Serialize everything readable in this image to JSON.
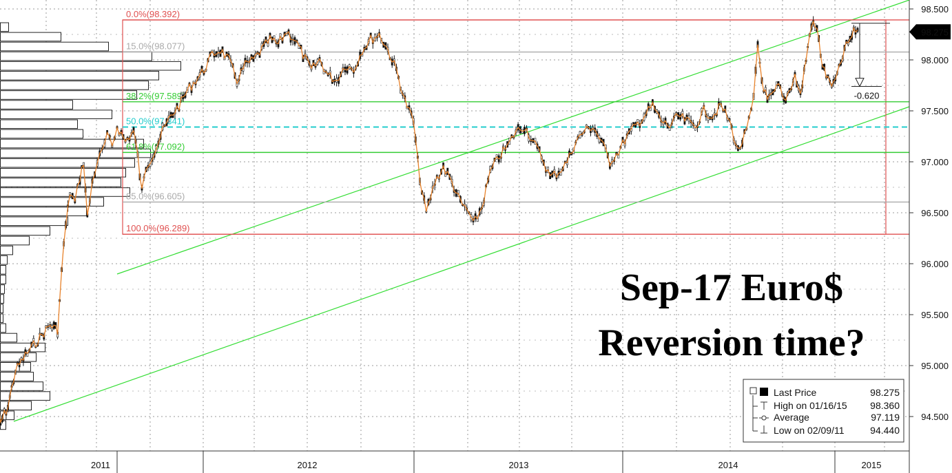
{
  "chart_data": {
    "type": "candlestick",
    "title": "Sep-17 Euro$",
    "subtitle": "Reversion time?",
    "y_axis": {
      "min": 94.3,
      "max": 98.55,
      "ticks": [
        "98.500",
        "98.000",
        "97.500",
        "97.000",
        "96.500",
        "96.000",
        "95.500",
        "95.000",
        "94.500"
      ],
      "position": "right"
    },
    "x_axis": {
      "labels": [
        "2011",
        "2012",
        "2013",
        "2014",
        "2015"
      ]
    },
    "last_price_label": "98.275",
    "fib_levels": [
      {
        "label": "0.0%(98.392)",
        "value": 98.392,
        "color": "#e05050"
      },
      {
        "label": "15.0%(98.077)",
        "value": 98.077,
        "color": "#aaaaaa"
      },
      {
        "label": "38.2%(97.589)",
        "value": 97.589,
        "color": "#33cc33"
      },
      {
        "label": "50.0%(97.341)",
        "value": 97.341,
        "color": "#22cccc"
      },
      {
        "label": "61.8%(97.092)",
        "value": 97.092,
        "color": "#33cc33"
      },
      {
        "label": "85.0%(96.605)",
        "value": 96.605,
        "color": "#aaaaaa"
      },
      {
        "label": "100.0%(96.289)",
        "value": 96.289,
        "color": "#e05050"
      }
    ],
    "annotation": "-0.620",
    "price_path": [
      [
        0.0,
        95.0
      ],
      [
        0.06,
        94.44
      ],
      [
        0.12,
        94.6
      ],
      [
        0.18,
        94.95
      ],
      [
        0.26,
        95.1
      ],
      [
        0.36,
        95.25
      ],
      [
        0.46,
        95.4
      ],
      [
        0.52,
        95.35
      ],
      [
        0.57,
        96.2
      ],
      [
        0.62,
        96.7
      ],
      [
        0.66,
        96.6
      ],
      [
        0.7,
        96.85
      ],
      [
        0.73,
        97.0
      ],
      [
        0.76,
        96.45
      ],
      [
        0.8,
        96.8
      ],
      [
        0.84,
        97.0
      ],
      [
        0.88,
        97.1
      ],
      [
        0.92,
        97.25
      ],
      [
        0.96,
        97.15
      ],
      [
        1.0,
        97.35
      ],
      [
        1.04,
        97.2
      ],
      [
        1.08,
        97.3
      ],
      [
        1.1,
        97.05
      ],
      [
        1.12,
        96.7
      ],
      [
        1.14,
        96.95
      ],
      [
        1.18,
        97.1
      ],
      [
        1.22,
        97.3
      ],
      [
        1.26,
        97.45
      ],
      [
        1.3,
        97.55
      ],
      [
        1.34,
        97.7
      ],
      [
        1.38,
        97.8
      ],
      [
        1.42,
        97.9
      ],
      [
        1.46,
        98.05
      ],
      [
        1.5,
        98.1
      ],
      [
        1.54,
        98.0
      ],
      [
        1.58,
        97.8
      ],
      [
        1.62,
        97.95
      ],
      [
        1.66,
        98.0
      ],
      [
        1.7,
        98.1
      ],
      [
        1.74,
        98.2
      ],
      [
        1.78,
        98.15
      ],
      [
        1.82,
        98.28
      ],
      [
        1.86,
        98.2
      ],
      [
        1.9,
        98.05
      ],
      [
        1.94,
        97.9
      ],
      [
        1.98,
        98.0
      ],
      [
        2.02,
        97.85
      ],
      [
        2.06,
        97.8
      ],
      [
        2.1,
        97.95
      ],
      [
        2.14,
        97.9
      ],
      [
        2.18,
        98.1
      ],
      [
        2.22,
        98.2
      ],
      [
        2.26,
        98.25
      ],
      [
        2.3,
        98.1
      ],
      [
        2.34,
        97.9
      ],
      [
        2.38,
        97.6
      ],
      [
        2.42,
        97.4
      ],
      [
        2.44,
        97.0
      ],
      [
        2.46,
        96.7
      ],
      [
        2.48,
        96.5
      ],
      [
        2.52,
        96.8
      ],
      [
        2.56,
        96.95
      ],
      [
        2.6,
        96.8
      ],
      [
        2.64,
        96.6
      ],
      [
        2.68,
        96.5
      ],
      [
        2.7,
        96.38
      ],
      [
        2.74,
        96.55
      ],
      [
        2.78,
        96.9
      ],
      [
        2.82,
        97.05
      ],
      [
        2.86,
        97.15
      ],
      [
        2.9,
        97.3
      ],
      [
        2.94,
        97.35
      ],
      [
        2.98,
        97.2
      ],
      [
        3.02,
        97.05
      ],
      [
        3.06,
        96.85
      ],
      [
        3.1,
        96.9
      ],
      [
        3.14,
        97.0
      ],
      [
        3.18,
        97.2
      ],
      [
        3.22,
        97.3
      ],
      [
        3.26,
        97.35
      ],
      [
        3.3,
        97.2
      ],
      [
        3.34,
        97.0
      ],
      [
        3.38,
        97.1
      ],
      [
        3.42,
        97.25
      ],
      [
        3.46,
        97.35
      ],
      [
        3.5,
        97.45
      ],
      [
        3.54,
        97.55
      ],
      [
        3.58,
        97.4
      ],
      [
        3.62,
        97.35
      ],
      [
        3.66,
        97.45
      ],
      [
        3.7,
        97.4
      ],
      [
        3.74,
        97.35
      ],
      [
        3.78,
        97.5
      ],
      [
        3.82,
        97.45
      ],
      [
        3.86,
        97.55
      ],
      [
        3.9,
        97.4
      ],
      [
        3.94,
        97.1
      ],
      [
        3.98,
        97.3
      ],
      [
        4.02,
        97.6
      ],
      [
        4.05,
        98.15
      ],
      [
        4.08,
        97.8
      ],
      [
        4.12,
        97.6
      ],
      [
        4.16,
        97.65
      ],
      [
        4.2,
        97.75
      ],
      [
        4.24,
        97.6
      ],
      [
        4.28,
        97.7
      ],
      [
        4.32,
        97.85
      ],
      [
        4.36,
        97.65
      ],
      [
        4.4,
        98.0
      ],
      [
        4.44,
        98.36
      ],
      [
        4.48,
        98.3
      ],
      [
        4.52,
        97.95
      ],
      [
        4.56,
        97.8
      ],
      [
        4.6,
        97.75
      ],
      [
        4.64,
        97.9
      ],
      [
        4.68,
        98.1
      ],
      [
        4.72,
        98.2
      ],
      [
        4.76,
        98.3
      ],
      [
        4.79,
        98.275
      ]
    ]
  },
  "legend": {
    "items": [
      {
        "label": "Last Price",
        "value": "98.275"
      },
      {
        "label": "High on 01/16/15",
        "value": "98.360"
      },
      {
        "label": "Average",
        "value": "97.119"
      },
      {
        "label": "Low on 02/09/11",
        "value": "94.440"
      }
    ]
  }
}
